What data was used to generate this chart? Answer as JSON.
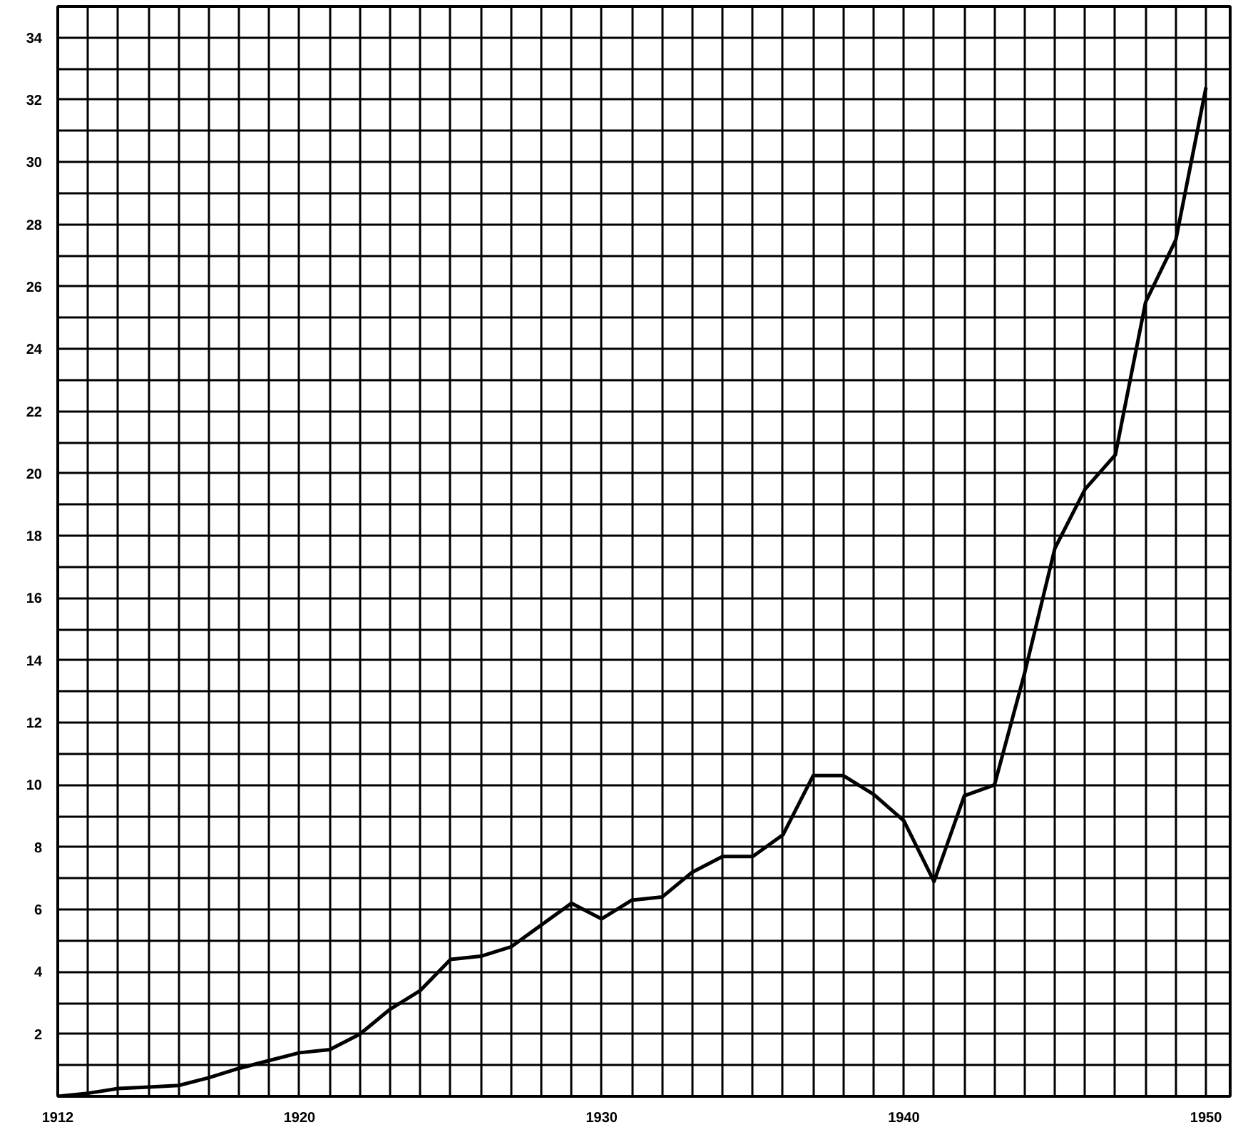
{
  "chart_data": {
    "type": "line",
    "x": [
      1912,
      1913,
      1914,
      1915,
      1916,
      1917,
      1918,
      1919,
      1920,
      1921,
      1922,
      1923,
      1924,
      1925,
      1926,
      1927,
      1928,
      1929,
      1930,
      1931,
      1932,
      1933,
      1934,
      1935,
      1936,
      1937,
      1938,
      1939,
      1940,
      1941,
      1942,
      1943,
      1944,
      1945,
      1946,
      1947,
      1948,
      1949,
      1950
    ],
    "series": [
      {
        "color": "#000000",
        "values": [
          0,
          0.1,
          0.25,
          0.3,
          0.35,
          0.6,
          0.9,
          1.15,
          1.4,
          1.5,
          2.0,
          2.8,
          3.4,
          4.4,
          4.5,
          4.8,
          5.5,
          6.2,
          5.7,
          6.3,
          6.4,
          7.2,
          7.7,
          7.7,
          8.4,
          10.3,
          10.3,
          9.7,
          8.85,
          6.9,
          9.65,
          10.0,
          13.6,
          17.6,
          19.5,
          20.6,
          25.5,
          27.5,
          32.4
        ]
      }
    ],
    "xlim": [
      1912,
      1950.8
    ],
    "ylim": [
      0,
      35
    ],
    "xticks": [
      1912,
      {
        "value": 1913,
        "label": null
      },
      {
        "value": 1914,
        "label": null
      },
      {
        "value": 1915,
        "label": null
      },
      {
        "value": 1916,
        "label": null
      },
      {
        "value": 1917,
        "label": null
      },
      {
        "value": 1918,
        "label": null
      },
      {
        "value": 1919,
        "label": null
      },
      1920,
      {
        "value": 1921,
        "label": null
      },
      {
        "value": 1922,
        "label": null
      },
      {
        "value": 1923,
        "label": null
      },
      {
        "value": 1924,
        "label": null
      },
      {
        "value": 1925,
        "label": null
      },
      {
        "value": 1926,
        "label": null
      },
      {
        "value": 1927,
        "label": null
      },
      {
        "value": 1928,
        "label": null
      },
      {
        "value": 1929,
        "label": null
      },
      1930,
      {
        "value": 1931,
        "label": null
      },
      {
        "value": 1932,
        "label": null
      },
      {
        "value": 1933,
        "label": null
      },
      {
        "value": 1934,
        "label": null
      },
      {
        "value": 1935,
        "label": null
      },
      {
        "value": 1936,
        "label": null
      },
      {
        "value": 1937,
        "label": null
      },
      {
        "value": 1938,
        "label": null
      },
      {
        "value": 1939,
        "label": null
      },
      1940,
      {
        "value": 1941,
        "label": null
      },
      {
        "value": 1942,
        "label": null
      },
      {
        "value": 1943,
        "label": null
      },
      {
        "value": 1944,
        "label": null
      },
      {
        "value": 1945,
        "label": null
      },
      {
        "value": 1946,
        "label": null
      },
      {
        "value": 1947,
        "label": null
      },
      {
        "value": 1948,
        "label": null
      },
      {
        "value": 1949,
        "label": null
      },
      1950
    ],
    "yticks": [
      {
        "value": 1,
        "label": null
      },
      2,
      {
        "value": 3,
        "label": null
      },
      4,
      {
        "value": 5,
        "label": null
      },
      6,
      {
        "value": 7,
        "label": null
      },
      8,
      {
        "value": 9,
        "label": null
      },
      10,
      {
        "value": 11,
        "label": null
      },
      12,
      {
        "value": 13,
        "label": null
      },
      14,
      {
        "value": 15,
        "label": null
      },
      16,
      {
        "value": 17,
        "label": null
      },
      18,
      {
        "value": 19,
        "label": null
      },
      20,
      {
        "value": 21,
        "label": null
      },
      22,
      {
        "value": 23,
        "label": null
      },
      24,
      {
        "value": 25,
        "label": null
      },
      26,
      {
        "value": 27,
        "label": null
      },
      28,
      {
        "value": 29,
        "label": null
      },
      30,
      {
        "value": 31,
        "label": null
      },
      32,
      {
        "value": 33,
        "label": null
      },
      34
    ],
    "grid": true,
    "line_style": "solid"
  }
}
